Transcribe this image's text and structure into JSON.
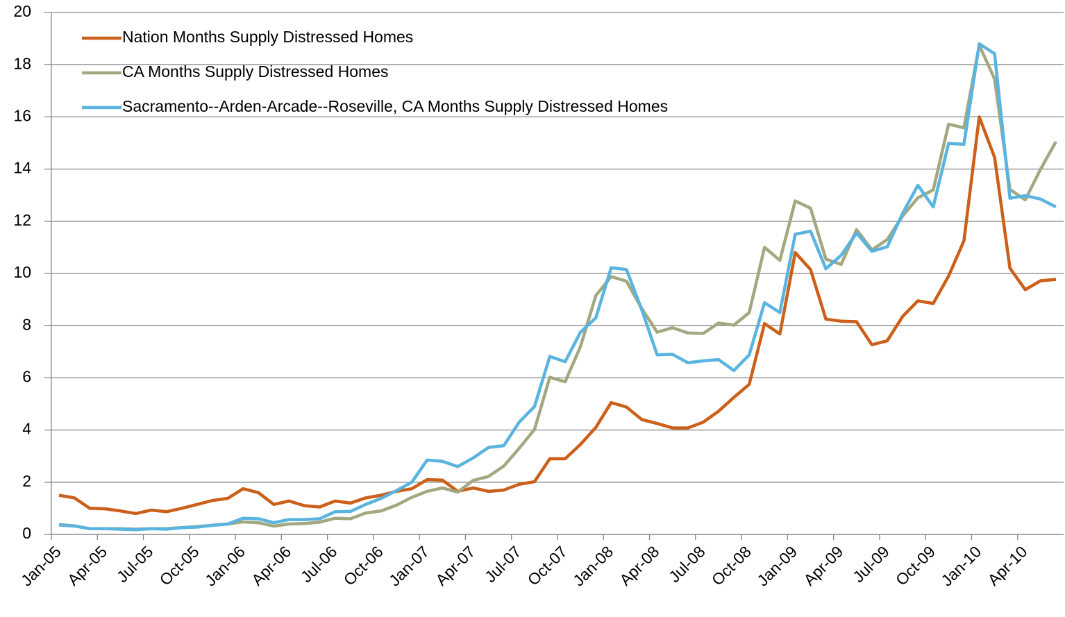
{
  "chart_data": {
    "type": "line",
    "categories": [
      "Jan-05",
      null,
      null,
      "Apr-05",
      null,
      null,
      "Jul-05",
      null,
      null,
      "Oct-05",
      null,
      null,
      "Jan-06",
      null,
      null,
      "Apr-06",
      null,
      null,
      "Jul-06",
      null,
      null,
      "Oct-06",
      null,
      null,
      "Jan-07",
      null,
      null,
      "Apr-07",
      null,
      null,
      "Jul-07",
      null,
      null,
      "Oct-07",
      null,
      null,
      "Jan-08",
      null,
      null,
      "Apr-08",
      null,
      null,
      "Jul-08",
      null,
      null,
      "Oct-08",
      null,
      null,
      "Jan-09",
      null,
      null,
      "Apr-09",
      null,
      null,
      "Jul-09",
      null,
      null,
      "Oct-09",
      null,
      null,
      "Jan-10",
      null,
      null,
      "Apr-10",
      null,
      null
    ],
    "series": [
      {
        "name": "Nation Months Supply Distressed Homes",
        "color": "#cc5f1a",
        "values": [
          1.5,
          1.4,
          1.0,
          0.98,
          0.9,
          0.8,
          0.93,
          0.87,
          1.0,
          1.15,
          1.3,
          1.38,
          1.75,
          1.6,
          1.15,
          1.28,
          1.1,
          1.05,
          1.28,
          1.2,
          1.4,
          1.5,
          1.65,
          1.75,
          2.1,
          2.08,
          1.65,
          1.78,
          1.65,
          1.7,
          1.92,
          2.02,
          2.9,
          2.9,
          3.45,
          4.1,
          5.05,
          4.88,
          4.4,
          4.25,
          4.08,
          4.08,
          4.3,
          4.72,
          5.25,
          5.75,
          8.08,
          7.68,
          10.8,
          10.15,
          8.25,
          8.17,
          8.15,
          7.27,
          7.42,
          8.35,
          8.95,
          8.85,
          9.9,
          11.25,
          16.0,
          14.45,
          10.2,
          9.38,
          9.72,
          9.77
        ]
      },
      {
        "name": "CA Months Supply Distressed Homes",
        "color": "#a3a881",
        "values": [
          0.38,
          0.33,
          0.22,
          0.22,
          0.22,
          0.2,
          0.22,
          0.22,
          0.26,
          0.3,
          0.35,
          0.4,
          0.48,
          0.45,
          0.32,
          0.4,
          0.42,
          0.47,
          0.62,
          0.6,
          0.82,
          0.9,
          1.12,
          1.42,
          1.65,
          1.78,
          1.62,
          2.07,
          2.22,
          2.62,
          3.3,
          4.02,
          6.02,
          5.85,
          7.2,
          9.15,
          9.88,
          9.7,
          8.65,
          7.75,
          7.92,
          7.72,
          7.7,
          8.1,
          8.02,
          8.5,
          11.0,
          10.5,
          12.78,
          12.5,
          10.55,
          10.35,
          11.68,
          10.9,
          11.3,
          12.2,
          12.9,
          13.2,
          15.72,
          15.58,
          18.75,
          17.45,
          13.22,
          12.82,
          14.0,
          15.05
        ]
      },
      {
        "name": "Sacramento--Arden-Arcade--Roseville, CA Months Supply Distressed Homes",
        "color": "#5ab4e0",
        "values": [
          0.36,
          0.32,
          0.22,
          0.22,
          0.2,
          0.18,
          0.22,
          0.2,
          0.26,
          0.28,
          0.35,
          0.4,
          0.62,
          0.6,
          0.45,
          0.57,
          0.57,
          0.6,
          0.87,
          0.88,
          1.15,
          1.38,
          1.68,
          2.0,
          2.85,
          2.8,
          2.6,
          2.93,
          3.33,
          3.4,
          4.3,
          4.9,
          6.82,
          6.62,
          7.75,
          8.3,
          10.22,
          10.15,
          8.6,
          6.88,
          6.9,
          6.58,
          6.65,
          6.7,
          6.28,
          6.88,
          8.88,
          8.5,
          11.5,
          11.62,
          10.18,
          10.7,
          11.55,
          10.85,
          11.02,
          12.3,
          13.38,
          12.55,
          14.98,
          14.95,
          18.8,
          18.42,
          12.88,
          12.98,
          12.85,
          12.55
        ]
      }
    ],
    "ylim": [
      0,
      20
    ],
    "yticks": [
      0,
      2,
      4,
      6,
      8,
      10,
      12,
      14,
      16,
      18,
      20
    ],
    "grid": true,
    "legend": "top-left"
  }
}
